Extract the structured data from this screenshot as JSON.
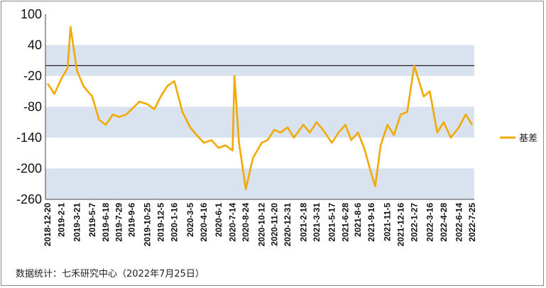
{
  "chart_data": {
    "type": "line",
    "title": "",
    "xlabel": "",
    "ylabel": "",
    "ylim": [
      -260,
      100
    ],
    "y_ticks": [
      "100",
      "40",
      "-20",
      "-80",
      "-140",
      "-200",
      "-260"
    ],
    "y_tick_values": [
      100,
      40,
      -20,
      -80,
      -140,
      -200,
      -260
    ],
    "reference_line": 0,
    "band_color": "#d9e3ef",
    "line_color": "#f2a900",
    "legend_position": "right",
    "x_tick_labels": [
      "2018-12-20",
      "2019-2-1",
      "2019-3-21",
      "2019-5-7",
      "2019-6-18",
      "2019-7-29",
      "2019-9-6",
      "2019-10-25",
      "2019-12-5",
      "2020-1-16",
      "2020-3-5",
      "2020-4-16",
      "2020-6-1",
      "2020-7-14",
      "2020-8-24",
      "2020-10-12",
      "2020-11-20",
      "2020-12-31",
      "2021-2-18",
      "2021-3-31",
      "2021-5-17",
      "2021-6-28",
      "2021-8-6",
      "2021-9-16",
      "2021-11-5",
      "2021-12-16",
      "2022-1-27",
      "2022-3-16",
      "2022-4-28",
      "2022-6-14",
      "2022-7-25"
    ],
    "series": [
      {
        "name": "基差",
        "x": [
          "2018-12-20",
          "2019-1-10",
          "2019-2-1",
          "2019-2-20",
          "2019-3-1",
          "2019-3-21",
          "2019-4-10",
          "2019-5-7",
          "2019-5-28",
          "2019-6-18",
          "2019-7-10",
          "2019-7-29",
          "2019-8-20",
          "2019-9-6",
          "2019-9-30",
          "2019-10-25",
          "2019-11-15",
          "2019-12-5",
          "2019-12-25",
          "2020-1-16",
          "2020-2-10",
          "2020-3-5",
          "2020-3-25",
          "2020-4-16",
          "2020-5-10",
          "2020-6-1",
          "2020-6-22",
          "2020-7-14",
          "2020-7-20",
          "2020-8-3",
          "2020-8-24",
          "2020-9-15",
          "2020-10-12",
          "2020-10-30",
          "2020-11-20",
          "2020-12-10",
          "2020-12-31",
          "2021-1-20",
          "2021-2-18",
          "2021-3-10",
          "2021-3-31",
          "2021-4-20",
          "2021-5-17",
          "2021-6-7",
          "2021-6-28",
          "2021-7-16",
          "2021-8-6",
          "2021-8-25",
          "2021-9-16",
          "2021-9-28",
          "2021-10-15",
          "2021-11-5",
          "2021-11-25",
          "2021-12-16",
          "2022-1-5",
          "2022-1-27",
          "2022-2-25",
          "2022-3-16",
          "2022-4-8",
          "2022-4-28",
          "2022-5-20",
          "2022-6-14",
          "2022-7-5",
          "2022-7-25"
        ],
        "values": [
          -35,
          -55,
          -25,
          -5,
          75,
          -10,
          -40,
          -60,
          -105,
          -115,
          -95,
          -100,
          -95,
          -85,
          -70,
          -75,
          -85,
          -60,
          -40,
          -30,
          -90,
          -120,
          -135,
          -150,
          -145,
          -160,
          -155,
          -165,
          -20,
          -150,
          -240,
          -180,
          -150,
          -145,
          -125,
          -130,
          -120,
          -140,
          -115,
          -130,
          -110,
          -125,
          -150,
          -130,
          -115,
          -145,
          -130,
          -160,
          -210,
          -235,
          -155,
          -115,
          -135,
          -95,
          -90,
          0,
          -60,
          -50,
          -130,
          -110,
          -140,
          -120,
          -95,
          -115
        ]
      }
    ]
  },
  "source_note": "数据统计：七禾研究中心（2022年7月25日）"
}
